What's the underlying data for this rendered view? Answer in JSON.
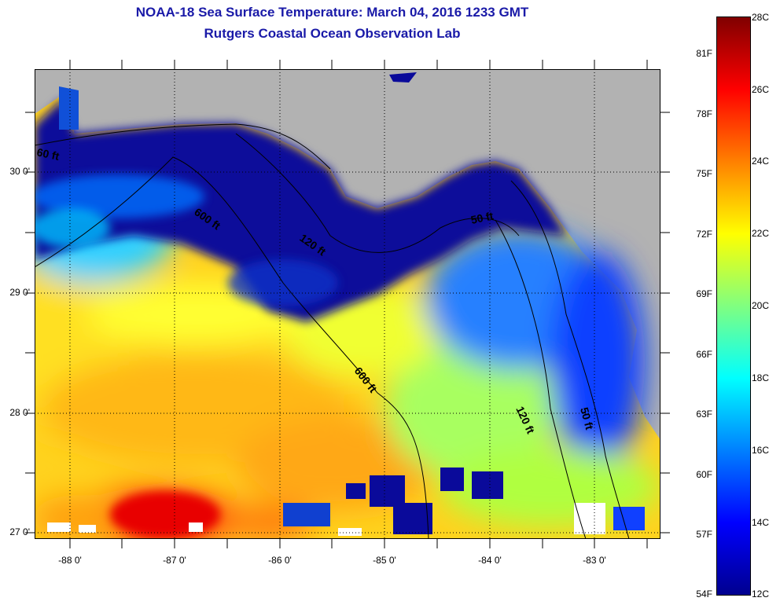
{
  "title": "NOAA-18 Sea Surface Temperature:  March 04, 2016 1233 GMT",
  "subtitle": "Rutgers Coastal Ocean Observation Lab",
  "map": {
    "lat_ticks": [
      "30 0'",
      "29 0'",
      "28 0'",
      "27 0'"
    ],
    "lon_ticks": [
      "-88 0'",
      "-87 0'",
      "-86 0'",
      "-85 0'",
      "-84 0'",
      "-83 0'"
    ],
    "isobath_labels": [
      "60 ft",
      "600 ft",
      "120 ft",
      "50 ft",
      "600 ft",
      "120 ft",
      "50 ft"
    ],
    "land_color": "#b2b2b2",
    "missing_color": "#ffffff"
  },
  "colorbar": {
    "fahrenheit_ticks": [
      "81F",
      "78F",
      "75F",
      "72F",
      "69F",
      "66F",
      "63F",
      "60F",
      "57F",
      "54F"
    ],
    "celsius_ticks": [
      "28C",
      "26C",
      "24C",
      "22C",
      "20C",
      "18C",
      "16C",
      "14C",
      "12C"
    ],
    "min_celsius": 12,
    "max_celsius": 28,
    "colors": [
      "#00008f",
      "#0000ff",
      "#0080ff",
      "#00ffff",
      "#80ff80",
      "#ffff00",
      "#ff8000",
      "#ff0000",
      "#800000"
    ]
  }
}
